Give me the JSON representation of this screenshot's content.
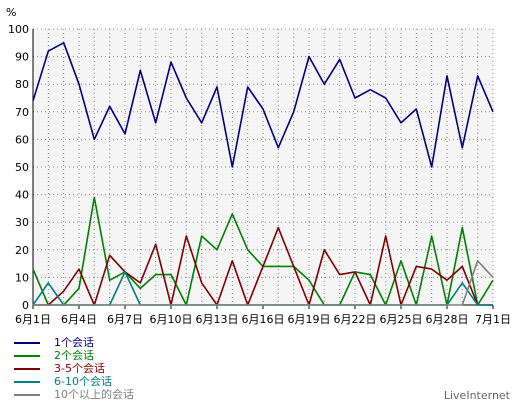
{
  "chart_data": {
    "type": "line",
    "ylabel": "%",
    "ylim": [
      0,
      100
    ],
    "yticks": [
      0,
      10,
      20,
      30,
      40,
      50,
      60,
      70,
      80,
      90,
      100
    ],
    "categories": [
      "6月1日",
      "6月2日",
      "6月3日",
      "6月4日",
      "6月5日",
      "6月6日",
      "6月7日",
      "6月8日",
      "6月9日",
      "6月10日",
      "6月11日",
      "6月12日",
      "6月13日",
      "6月14日",
      "6月15日",
      "6月16日",
      "6月17日",
      "6月18日",
      "6月19日",
      "6月20日",
      "6月21日",
      "6月22日",
      "6月23日",
      "6月24日",
      "6月25日",
      "6月26日",
      "6月27日",
      "6月28日",
      "6月29日",
      "6月30日",
      "7月1日"
    ],
    "tick_labels": [
      "6月1日",
      "6月4日",
      "6月7日",
      "6月10日",
      "6月13日",
      "6月16日",
      "6月19日",
      "6月22日",
      "6月25日",
      "6月28日",
      "7月1日"
    ],
    "tick_indices": [
      0,
      3,
      6,
      9,
      12,
      15,
      18,
      21,
      24,
      27,
      30
    ],
    "grid": true,
    "legend_position": "bottom-left",
    "series": [
      {
        "name": "1个会话",
        "color": "#000080",
        "values": [
          74,
          92,
          95,
          80,
          60,
          72,
          62,
          85,
          66,
          88,
          75,
          66,
          79,
          50,
          79,
          71,
          57,
          70,
          90,
          80,
          89,
          75,
          78,
          75,
          66,
          71,
          50,
          83,
          57,
          83,
          70
        ]
      },
      {
        "name": "2个会话",
        "color": "#008000",
        "values": [
          13,
          0,
          0,
          6,
          39,
          9,
          12,
          6,
          11,
          11,
          0,
          25,
          20,
          33,
          20,
          14,
          14,
          14,
          9,
          0,
          0,
          12,
          11,
          0,
          16,
          0,
          25,
          0,
          28,
          0,
          9
        ]
      },
      {
        "name": "3-5个会话",
        "color": "#800000",
        "values": [
          0,
          0,
          5,
          13,
          0,
          18,
          12,
          8,
          22,
          0,
          25,
          8,
          0,
          16,
          0,
          14,
          28,
          14,
          0,
          20,
          11,
          12,
          0,
          25,
          0,
          14,
          13,
          9,
          14,
          0,
          0
        ]
      },
      {
        "name": "6-10个会话",
        "color": "#008080",
        "values": [
          0,
          8,
          0,
          0,
          0,
          0,
          12,
          0,
          0,
          0,
          0,
          0,
          0,
          0,
          0,
          0,
          0,
          0,
          0,
          0,
          0,
          0,
          0,
          0,
          0,
          0,
          0,
          0,
          8,
          0,
          0
        ]
      },
      {
        "name": "10个以上的会话",
        "color": "#808080",
        "values": [
          0,
          0,
          0,
          0,
          0,
          0,
          0,
          0,
          0,
          0,
          0,
          0,
          0,
          0,
          0,
          0,
          0,
          0,
          0,
          0,
          0,
          0,
          0,
          0,
          0,
          0,
          0,
          0,
          0,
          16,
          10
        ]
      }
    ]
  },
  "branding": "LiveInternet"
}
